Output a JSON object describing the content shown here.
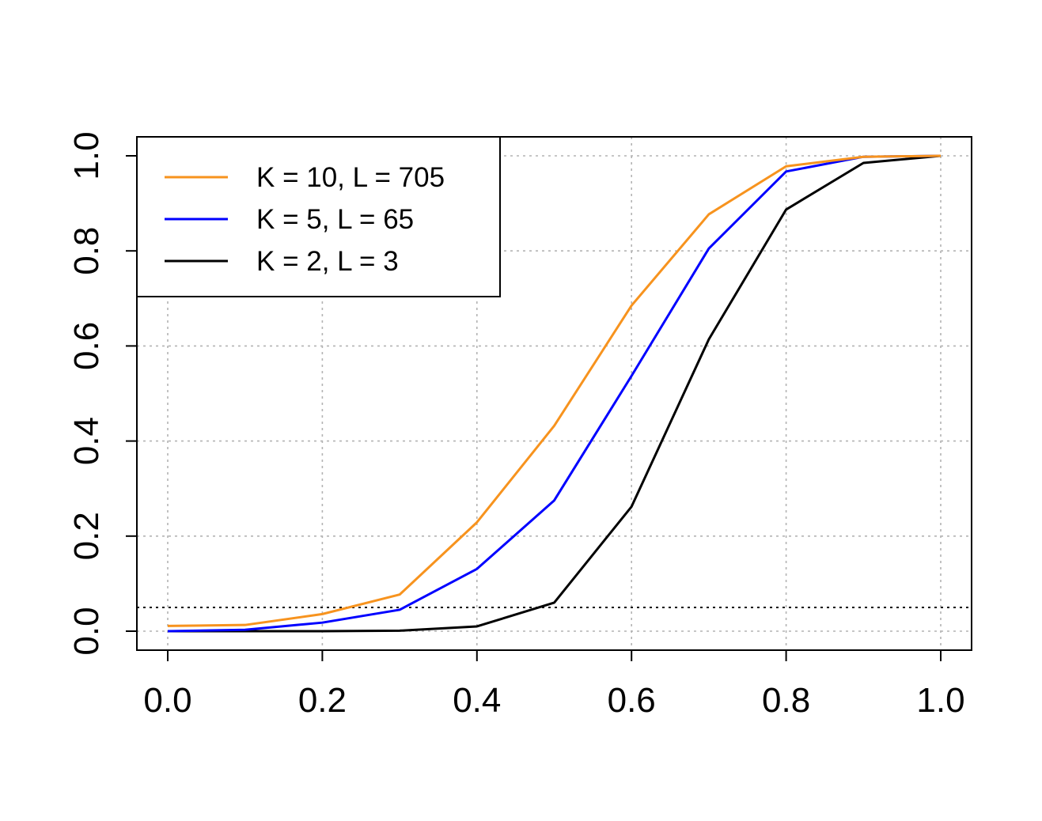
{
  "chart_data": {
    "type": "line",
    "title": "",
    "xlabel": "",
    "ylabel": "",
    "xlim": [
      0.0,
      1.0
    ],
    "ylim": [
      0.0,
      1.0
    ],
    "x": [
      0.0,
      0.1,
      0.2,
      0.3,
      0.4,
      0.5,
      0.6,
      0.7,
      0.8,
      0.9,
      1.0
    ],
    "x_ticks": [
      "0.0",
      "0.2",
      "0.4",
      "0.6",
      "0.8",
      "1.0"
    ],
    "y_ticks": [
      "0.0",
      "0.2",
      "0.4",
      "0.6",
      "0.8",
      "1.0"
    ],
    "grid": true,
    "reference_line": {
      "y": 0.05,
      "style": "dotted",
      "color": "#000000"
    },
    "legend": {
      "position": "top-left"
    },
    "series": [
      {
        "name": "K = 10, L = 705",
        "color": "#F7931E",
        "values": [
          0.011,
          0.013,
          0.036,
          0.077,
          0.229,
          0.432,
          0.685,
          0.877,
          0.978,
          0.998,
          1.0
        ]
      },
      {
        "name": "K = 5, L = 65",
        "color": "#0000FF",
        "values": [
          0.0,
          0.003,
          0.018,
          0.045,
          0.131,
          0.275,
          0.537,
          0.805,
          0.967,
          0.998,
          1.0
        ]
      },
      {
        "name": "K = 2, L = 3",
        "color": "#000000",
        "values": [
          0.0,
          0.0,
          0.0,
          0.001,
          0.01,
          0.06,
          0.262,
          0.614,
          0.887,
          0.985,
          1.0
        ]
      }
    ]
  }
}
